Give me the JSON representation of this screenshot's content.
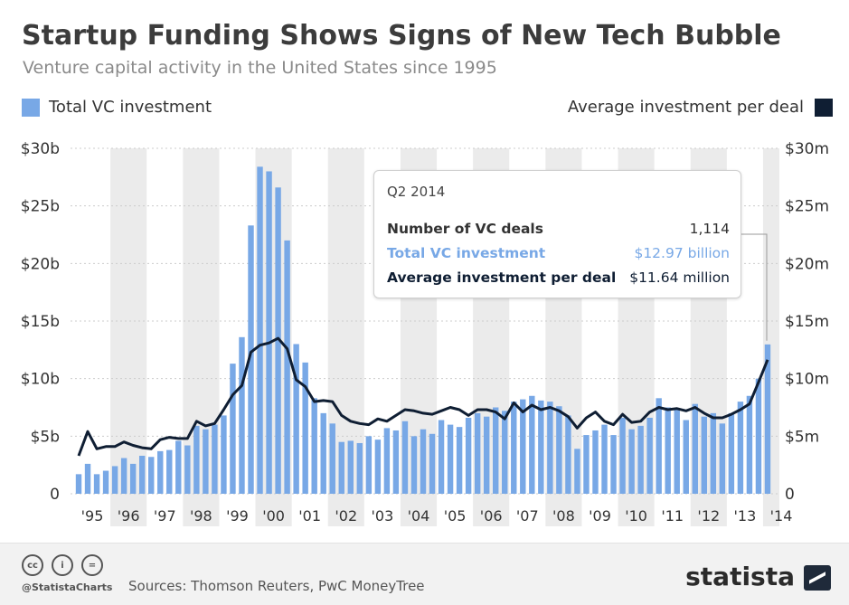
{
  "title": "Startup Funding Shows Signs of New Tech Bubble",
  "subtitle": "Venture capital activity in the United States since 1995",
  "legend": {
    "left": "Total VC investment",
    "right": "Average investment per deal"
  },
  "colors": {
    "bar": "#78a8e6",
    "line": "#0f1e33",
    "band": "#ebebeb",
    "grid": "#cccccc",
    "leader": "#999999"
  },
  "tooltip": {
    "period": "Q2 2014",
    "rows": [
      {
        "label": "Number of VC deals",
        "value": "1,114"
      },
      {
        "label": "Total VC investment",
        "value": "$12.97 billion"
      },
      {
        "label": "Average investment per deal",
        "value": "$11.64 million"
      }
    ]
  },
  "footer": {
    "icons": [
      "cc-icon",
      "by-icon",
      "nd-icon"
    ],
    "icon_text": [
      "cc",
      "i",
      "="
    ],
    "handle": "@StatistaCharts",
    "sources": "Sources: Thomson Reuters, PwC MoneyTree",
    "brand": "statista"
  },
  "chart_data": {
    "type": "bar",
    "left_axis": {
      "ticks": [
        "0",
        "$5b",
        "$10b",
        "$15b",
        "$20b",
        "$25b",
        "$30b"
      ],
      "range": [
        0,
        30
      ],
      "unit": "billion USD"
    },
    "right_axis": {
      "ticks": [
        "0",
        "$5m",
        "$10m",
        "$15m",
        "$20m",
        "$25m",
        "$30m"
      ],
      "range": [
        0,
        30
      ],
      "unit": "million USD"
    },
    "x_labels": [
      "'95",
      "'96",
      "'97",
      "'98",
      "'99",
      "'00",
      "'01",
      "'02",
      "'03",
      "'04",
      "'05",
      "'06",
      "'07",
      "'08",
      "'09",
      "'10",
      "'11",
      "'12",
      "'13",
      "'14"
    ],
    "x_start_quarter": "Q1 1995",
    "grid": true,
    "series": [
      {
        "name": "Total VC investment",
        "type": "bar",
        "axis": "left",
        "values": [
          1.7,
          2.6,
          1.7,
          2.0,
          2.4,
          3.1,
          2.6,
          3.3,
          3.2,
          3.7,
          3.8,
          4.6,
          4.2,
          5.9,
          5.6,
          6.0,
          6.8,
          11.3,
          13.6,
          23.3,
          28.4,
          28.0,
          26.6,
          22.0,
          13.0,
          11.4,
          8.3,
          7.0,
          6.1,
          4.5,
          4.6,
          4.4,
          5.0,
          4.7,
          5.7,
          5.5,
          6.3,
          5.0,
          5.6,
          5.2,
          6.4,
          6.0,
          5.8,
          6.6,
          7.0,
          6.7,
          7.5,
          7.2,
          8.0,
          8.2,
          8.5,
          8.1,
          8.0,
          7.6,
          6.8,
          3.9,
          5.1,
          5.5,
          6.0,
          5.1,
          6.6,
          5.6,
          5.9,
          6.6,
          8.3,
          7.5,
          7.3,
          6.4,
          7.8,
          6.7,
          7.0,
          6.1,
          7.0,
          8.0,
          8.5,
          10.0,
          12.97
        ]
      },
      {
        "name": "Average investment per deal",
        "type": "line",
        "axis": "right",
        "values": [
          3.3,
          5.4,
          3.9,
          4.1,
          4.1,
          4.5,
          4.2,
          4.0,
          3.9,
          4.7,
          4.9,
          4.8,
          4.8,
          6.3,
          5.9,
          6.1,
          7.3,
          8.6,
          9.4,
          12.3,
          12.9,
          13.1,
          13.5,
          12.6,
          9.9,
          9.3,
          8.0,
          8.1,
          8.0,
          6.8,
          6.3,
          6.1,
          6.0,
          6.5,
          6.3,
          6.8,
          7.3,
          7.2,
          7.0,
          6.9,
          7.2,
          7.5,
          7.3,
          6.8,
          7.3,
          7.3,
          7.1,
          6.5,
          7.9,
          7.1,
          7.7,
          7.3,
          7.5,
          7.2,
          6.7,
          5.7,
          6.6,
          7.1,
          6.3,
          6.0,
          6.9,
          6.2,
          6.3,
          7.1,
          7.5,
          7.3,
          7.4,
          7.2,
          7.5,
          7.0,
          6.6,
          6.6,
          6.9,
          7.3,
          7.8,
          9.7,
          11.64
        ]
      }
    ],
    "highlight": {
      "quarter": "Q2 2014"
    }
  }
}
